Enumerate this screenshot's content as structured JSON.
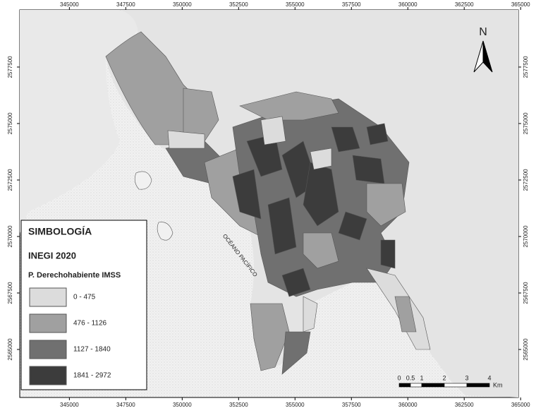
{
  "map": {
    "coordinates": {
      "xticks": [
        345000,
        347500,
        350000,
        352500,
        355000,
        357500,
        360000,
        362500,
        365000
      ],
      "xlim": [
        342800,
        364900
      ],
      "yticks": [
        2565000,
        2567500,
        2570000,
        2572500,
        2575000,
        2577500
      ],
      "ylim": [
        2562875,
        2580030
      ]
    },
    "north": "N",
    "sea_label": "OCÉANO PACÍFICO",
    "legend": {
      "title": "SIMBOLOGÍA",
      "source": "INEGI 2020",
      "variable": "P. Derechohabiente IMSS",
      "classes": [
        {
          "label": "0 - 475",
          "color": "#dcdcdc"
        },
        {
          "label": "476 - 1126",
          "color": "#a0a0a0"
        },
        {
          "label": "1127 - 1840",
          "color": "#707070"
        },
        {
          "label": "1841 - 2972",
          "color": "#3c3c3c"
        }
      ]
    },
    "scale_bar": {
      "ticks": [
        0,
        0.5,
        1,
        2,
        3,
        4
      ],
      "unit": "Km"
    }
  }
}
